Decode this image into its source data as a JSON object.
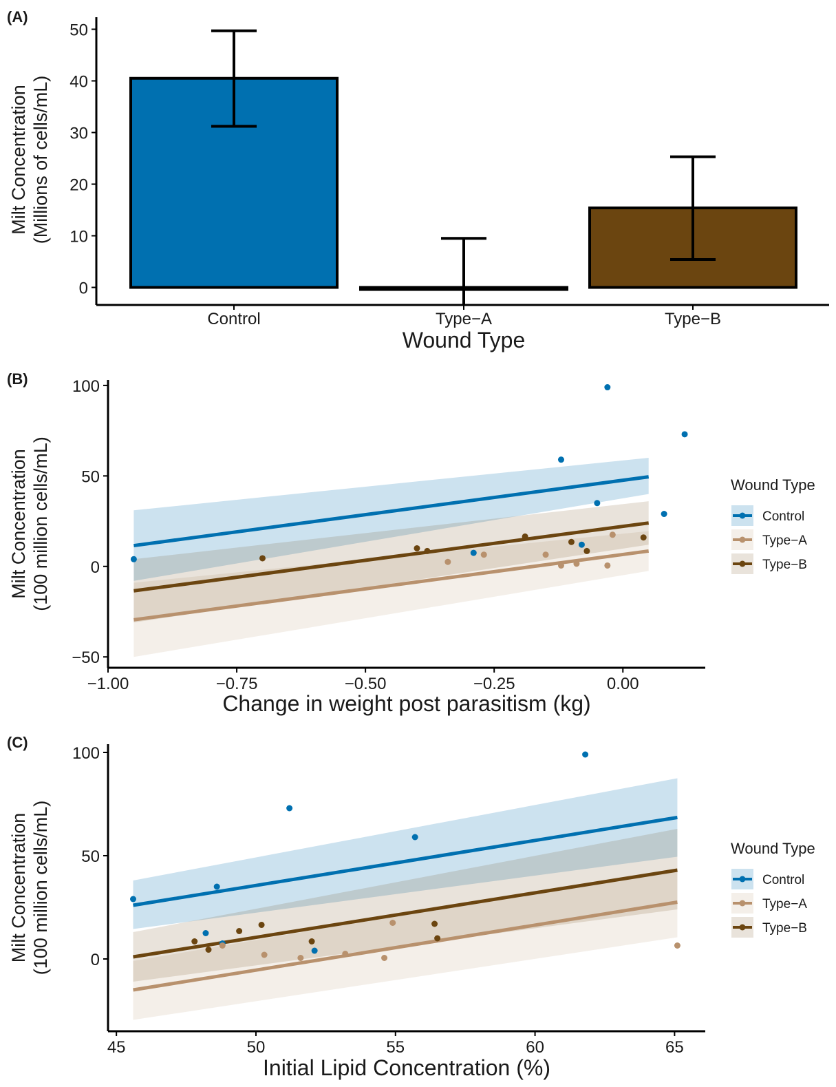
{
  "colors": {
    "Control": "#0070b0",
    "Type-A": "#b8916d",
    "Type-B": "#6b4510",
    "axis": "#000000"
  },
  "chart_data": [
    {
      "panel": "(A)",
      "type": "bar",
      "xlabel": "Wound Type",
      "ylabel": [
        "Milt Concentration",
        "(Millions of cells/mL)"
      ],
      "ylim": [
        -4,
        52
      ],
      "yticks": [
        0,
        10,
        20,
        30,
        40,
        50
      ],
      "categories": [
        "Control",
        "Type−A",
        "Type−B"
      ],
      "values": [
        40.5,
        -0.3,
        15.4
      ],
      "error_low": [
        31.2,
        -3.5,
        5.4
      ],
      "error_high": [
        49.7,
        9.5,
        25.3
      ],
      "grid": false,
      "legend": "none"
    },
    {
      "panel": "(B)",
      "type": "scatter",
      "xlabel": "Change in weight post parasitism (kg)",
      "ylabel": [
        "Milt Concentration",
        "(100 million cells/mL)"
      ],
      "xlim": [
        -1.0,
        0.16
      ],
      "ylim": [
        -56,
        103
      ],
      "xticks": [
        -1.0,
        -0.75,
        -0.5,
        -0.25,
        0.0
      ],
      "xtick_labels": [
        "−1.00",
        "−0.75",
        "−0.50",
        "−0.25",
        "0.00"
      ],
      "yticks": [
        -50,
        0,
        50,
        100
      ],
      "ytick_labels": [
        "−50",
        "0",
        "50",
        "100"
      ],
      "grid": false,
      "legend": "right",
      "legend_title": "Wound Type",
      "legend_labels": [
        "Control",
        "Type−A",
        "Type−B"
      ],
      "series": [
        {
          "name": "Control",
          "x": [
            -0.95,
            -0.29,
            -0.12,
            -0.08,
            -0.05,
            -0.03,
            0.08,
            0.12
          ],
          "y": [
            4,
            7.5,
            59,
            12,
            35,
            99,
            29,
            73
          ],
          "fit": {
            "x": [
              -0.95,
              0.05
            ],
            "y": [
              11.5,
              49.5
            ],
            "lo": [
              -8,
              40
            ],
            "hi": [
              31,
              60
            ]
          }
        },
        {
          "name": "Type−A",
          "x": [
            -0.34,
            -0.27,
            -0.15,
            -0.12,
            -0.09,
            -0.03,
            -0.02
          ],
          "y": [
            2.5,
            6.5,
            6.5,
            0.5,
            1.5,
            0.5,
            17.5
          ],
          "fit": {
            "x": [
              -0.95,
              0.05
            ],
            "y": [
              -29.5,
              8.5
            ],
            "lo": [
              -50,
              -2.5
            ],
            "hi": [
              -9,
              19.5
            ]
          }
        },
        {
          "name": "Type−B",
          "x": [
            -0.7,
            -0.4,
            -0.38,
            -0.19,
            -0.1,
            -0.07,
            0.04
          ],
          "y": [
            4.5,
            10,
            8.5,
            16.5,
            13.5,
            8.5,
            16
          ],
          "fit": {
            "x": [
              -0.95,
              0.05
            ],
            "y": [
              -13.5,
              24
            ],
            "lo": [
              -31,
              12
            ],
            "hi": [
              4,
              36
            ]
          }
        }
      ]
    },
    {
      "panel": "(C)",
      "type": "scatter",
      "xlabel": "Initial Lipid Concentration (%)",
      "ylabel": [
        "Milt Concentration",
        "(100 million cells/mL)"
      ],
      "xlim": [
        44.7,
        66.1
      ],
      "ylim": [
        -35,
        104
      ],
      "xticks": [
        45,
        50,
        55,
        60,
        65
      ],
      "xtick_labels": [
        "45",
        "50",
        "55",
        "60",
        "65"
      ],
      "yticks": [
        0,
        50,
        100
      ],
      "ytick_labels": [
        "0",
        "50",
        "100"
      ],
      "grid": false,
      "legend": "right",
      "legend_title": "Wound Type",
      "legend_labels": [
        "Control",
        "Type−A",
        "Type−B"
      ],
      "series": [
        {
          "name": "Control",
          "x": [
            45.6,
            48.2,
            48.6,
            48.8,
            51.2,
            52.1,
            55.7,
            61.8
          ],
          "y": [
            29,
            12.5,
            35,
            7.5,
            73,
            4,
            59,
            99
          ],
          "fit": {
            "x": [
              45.6,
              65.1
            ],
            "y": [
              26,
              68.5
            ],
            "lo": [
              14.5,
              49.5
            ],
            "hi": [
              38,
              87.5
            ]
          }
        },
        {
          "name": "Type−A",
          "x": [
            48.8,
            50.3,
            51.6,
            53.2,
            54.6,
            54.9,
            65.1
          ],
          "y": [
            6.5,
            2,
            0.5,
            2.5,
            0.5,
            17.5,
            6.5
          ],
          "fit": {
            "x": [
              45.6,
              65.1
            ],
            "y": [
              -15,
              27.5
            ],
            "lo": [
              -29.5,
              10.5
            ],
            "hi": [
              -1,
              44
            ]
          }
        },
        {
          "name": "Type−B",
          "x": [
            47.8,
            48.3,
            49.4,
            50.2,
            52,
            56.4,
            56.5
          ],
          "y": [
            8.5,
            4.5,
            13.5,
            16.5,
            8.5,
            17,
            10
          ],
          "fit": {
            "x": [
              45.6,
              65.1
            ],
            "y": [
              1,
              43
            ],
            "lo": [
              -11,
              24
            ],
            "hi": [
              13,
              63
            ]
          }
        }
      ]
    }
  ]
}
